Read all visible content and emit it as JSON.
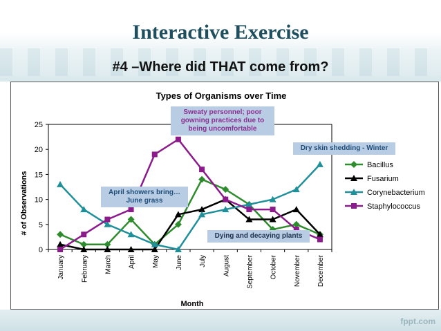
{
  "slide": {
    "title": "Interactive Exercise",
    "subtitle": "#4 –Where did THAT come from?",
    "footer_brand": "fppt.com"
  },
  "annotations": {
    "sweaty": "Sweaty personnel; poor gowning practices due to being uncomfortable",
    "dry_skin": "Dry skin shedding - Winter",
    "april_showers": "April showers bring…June grass",
    "dying_plants": "Dying and decaying plants"
  },
  "chart_data": {
    "type": "line",
    "title": "Types of Organisms over Time",
    "xlabel": "Month",
    "ylabel": "# of Observations",
    "ylim": [
      0,
      25
    ],
    "yticks": [
      0,
      5,
      10,
      15,
      20,
      25
    ],
    "grid": "horizontal major gridline at 25 only",
    "legend": "right",
    "categories": [
      "January",
      "February",
      "March",
      "April",
      "May",
      "June",
      "July",
      "August",
      "September",
      "October",
      "November",
      "December"
    ],
    "series": [
      {
        "name": "Bacillus",
        "color": "#2e8b2e",
        "marker": "diamond",
        "values": [
          3,
          1,
          1,
          6,
          1,
          5,
          14,
          12,
          9,
          4,
          5,
          3
        ]
      },
      {
        "name": "Fusarium",
        "color": "#000000",
        "marker": "triangle",
        "values": [
          1,
          0,
          0,
          0,
          0,
          7,
          8,
          10,
          6,
          6,
          8,
          3
        ]
      },
      {
        "name": "Corynebacterium",
        "color": "#1f8f9a",
        "marker": "triangle",
        "values": [
          13,
          8,
          5,
          3,
          1,
          0,
          7,
          8,
          9,
          10,
          12,
          17
        ]
      },
      {
        "name": "Staphylococcus",
        "color": "#8b1a8b",
        "marker": "square",
        "values": [
          0,
          3,
          6,
          8,
          19,
          22,
          16,
          10,
          8,
          8,
          4,
          2
        ]
      }
    ]
  }
}
